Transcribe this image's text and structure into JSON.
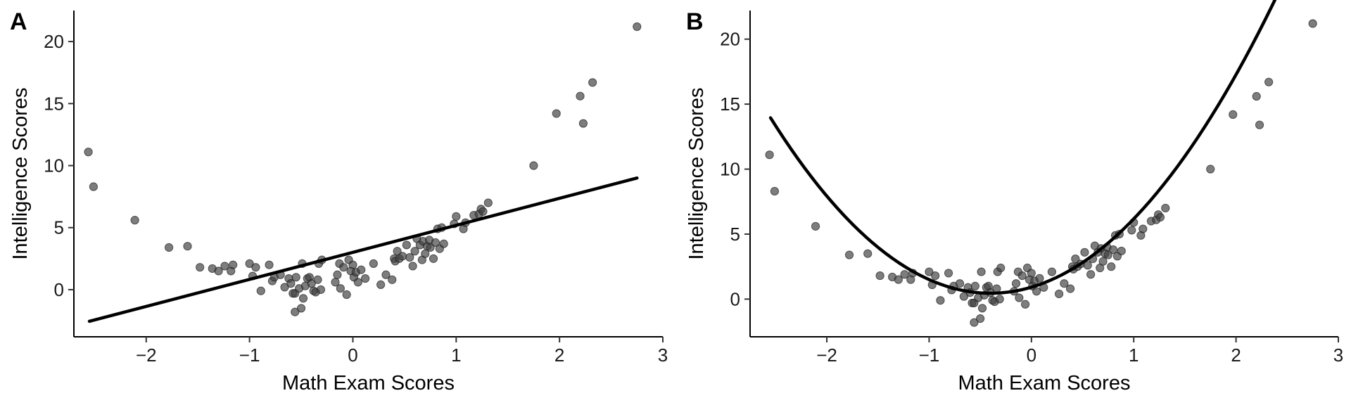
{
  "chart_data": [
    {
      "panel_label": "A",
      "type": "scatter",
      "fit": "linear",
      "xlabel": "Math Exam Scores",
      "ylabel": "Intelligence Scores",
      "xlim": [
        -2.7,
        3.0
      ],
      "ylim": [
        -3.8,
        22.5
      ],
      "xticks": [
        -2,
        -1,
        0,
        1,
        2,
        3
      ],
      "yticks": [
        0,
        5,
        10,
        15,
        20
      ],
      "point_color": "#3f3f3f",
      "line_color": "#000000",
      "points": [
        [
          -2.56,
          11.1
        ],
        [
          -2.51,
          8.3
        ],
        [
          -2.11,
          5.6
        ],
        [
          -1.78,
          3.4
        ],
        [
          -1.6,
          3.5
        ],
        [
          -1.48,
          1.8
        ],
        [
          -1.36,
          1.7
        ],
        [
          -1.3,
          1.5
        ],
        [
          -1.24,
          1.9
        ],
        [
          -1.18,
          1.5
        ],
        [
          -1.16,
          2.0
        ],
        [
          -1.0,
          2.1
        ],
        [
          -0.97,
          1.1
        ],
        [
          -0.94,
          1.8
        ],
        [
          -0.89,
          -0.1
        ],
        [
          -0.81,
          2.0
        ],
        [
          -0.78,
          0.7
        ],
        [
          -0.76,
          1.0
        ],
        [
          -0.7,
          1.2
        ],
        [
          -0.66,
          0.2
        ],
        [
          -0.62,
          0.9
        ],
        [
          -0.6,
          0.5
        ],
        [
          -0.58,
          -0.3
        ],
        [
          -0.56,
          -0.3
        ],
        [
          -0.56,
          -1.8
        ],
        [
          -0.55,
          1.0
        ],
        [
          -0.52,
          0.1
        ],
        [
          -0.5,
          -1.5
        ],
        [
          -0.49,
          2.1
        ],
        [
          -0.48,
          -0.7
        ],
        [
          -0.46,
          0.3
        ],
        [
          -0.44,
          0.9
        ],
        [
          -0.42,
          1.0
        ],
        [
          -0.4,
          0.5
        ],
        [
          -0.38,
          -0.1
        ],
        [
          -0.36,
          -0.2
        ],
        [
          -0.34,
          0.8
        ],
        [
          -0.33,
          2.1
        ],
        [
          -0.31,
          0.0
        ],
        [
          -0.3,
          2.4
        ],
        [
          -0.17,
          0.6
        ],
        [
          -0.15,
          1.2
        ],
        [
          -0.13,
          2.1
        ],
        [
          -0.12,
          0.1
        ],
        [
          -0.09,
          1.8
        ],
        [
          -0.06,
          -0.4
        ],
        [
          -0.04,
          2.4
        ],
        [
          -0.02,
          1.5
        ],
        [
          0.0,
          2.0
        ],
        [
          0.01,
          1.0
        ],
        [
          0.03,
          1.4
        ],
        [
          0.05,
          0.6
        ],
        [
          0.08,
          1.6
        ],
        [
          0.12,
          0.9
        ],
        [
          0.2,
          2.1
        ],
        [
          0.27,
          0.4
        ],
        [
          0.32,
          1.2
        ],
        [
          0.38,
          0.8
        ],
        [
          0.4,
          2.5
        ],
        [
          0.41,
          2.3
        ],
        [
          0.43,
          3.1
        ],
        [
          0.45,
          2.5
        ],
        [
          0.48,
          2.7
        ],
        [
          0.52,
          3.6
        ],
        [
          0.55,
          2.6
        ],
        [
          0.58,
          1.9
        ],
        [
          0.6,
          3.1
        ],
        [
          0.62,
          4.1
        ],
        [
          0.65,
          3.6
        ],
        [
          0.67,
          2.4
        ],
        [
          0.68,
          3.9
        ],
        [
          0.7,
          2.9
        ],
        [
          0.72,
          3.5
        ],
        [
          0.74,
          4.0
        ],
        [
          0.75,
          3.4
        ],
        [
          0.78,
          2.5
        ],
        [
          0.8,
          3.8
        ],
        [
          0.82,
          4.9
        ],
        [
          0.84,
          3.3
        ],
        [
          0.86,
          5.0
        ],
        [
          0.88,
          3.7
        ],
        [
          0.98,
          5.3
        ],
        [
          1.0,
          5.9
        ],
        [
          1.07,
          4.9
        ],
        [
          1.09,
          5.4
        ],
        [
          1.17,
          6.0
        ],
        [
          1.22,
          6.1
        ],
        [
          1.24,
          6.5
        ],
        [
          1.26,
          6.3
        ],
        [
          1.31,
          7.0
        ],
        [
          1.75,
          10.0
        ],
        [
          1.97,
          14.2
        ],
        [
          2.2,
          15.6
        ],
        [
          2.23,
          13.4
        ],
        [
          2.32,
          16.7
        ],
        [
          2.75,
          21.2
        ]
      ],
      "fit_curve": {
        "x": [
          -2.55,
          2.75
        ],
        "y": [
          -2.55,
          9.0
        ]
      }
    },
    {
      "panel_label": "B",
      "type": "scatter",
      "fit": "quadratic",
      "xlabel": "Math Exam Scores",
      "ylabel": "Intelligence Scores",
      "xlim": [
        -2.75,
        3.0
      ],
      "ylim": [
        -2.9,
        22.2
      ],
      "xticks": [
        -2,
        -1,
        0,
        1,
        2,
        3
      ],
      "yticks": [
        0,
        5,
        10,
        15,
        20
      ],
      "point_color": "#3f3f3f",
      "line_color": "#000000",
      "points": [
        [
          -2.56,
          11.1
        ],
        [
          -2.51,
          8.3
        ],
        [
          -2.11,
          5.6
        ],
        [
          -1.78,
          3.4
        ],
        [
          -1.6,
          3.5
        ],
        [
          -1.48,
          1.8
        ],
        [
          -1.36,
          1.7
        ],
        [
          -1.3,
          1.5
        ],
        [
          -1.24,
          1.9
        ],
        [
          -1.18,
          1.5
        ],
        [
          -1.16,
          2.0
        ],
        [
          -1.0,
          2.1
        ],
        [
          -0.97,
          1.1
        ],
        [
          -0.94,
          1.8
        ],
        [
          -0.89,
          -0.1
        ],
        [
          -0.81,
          2.0
        ],
        [
          -0.78,
          0.7
        ],
        [
          -0.76,
          1.0
        ],
        [
          -0.7,
          1.2
        ],
        [
          -0.66,
          0.2
        ],
        [
          -0.62,
          0.9
        ],
        [
          -0.6,
          0.5
        ],
        [
          -0.58,
          -0.3
        ],
        [
          -0.56,
          -0.3
        ],
        [
          -0.56,
          -1.8
        ],
        [
          -0.55,
          1.0
        ],
        [
          -0.52,
          0.1
        ],
        [
          -0.5,
          -1.5
        ],
        [
          -0.49,
          2.1
        ],
        [
          -0.48,
          -0.7
        ],
        [
          -0.46,
          0.3
        ],
        [
          -0.44,
          0.9
        ],
        [
          -0.42,
          1.0
        ],
        [
          -0.4,
          0.5
        ],
        [
          -0.38,
          -0.1
        ],
        [
          -0.36,
          -0.2
        ],
        [
          -0.34,
          0.8
        ],
        [
          -0.33,
          2.1
        ],
        [
          -0.31,
          0.0
        ],
        [
          -0.3,
          2.4
        ],
        [
          -0.17,
          0.6
        ],
        [
          -0.15,
          1.2
        ],
        [
          -0.13,
          2.1
        ],
        [
          -0.12,
          0.1
        ],
        [
          -0.09,
          1.8
        ],
        [
          -0.06,
          -0.4
        ],
        [
          -0.04,
          2.4
        ],
        [
          -0.02,
          1.5
        ],
        [
          0.0,
          2.0
        ],
        [
          0.01,
          1.0
        ],
        [
          0.03,
          1.4
        ],
        [
          0.05,
          0.6
        ],
        [
          0.08,
          1.6
        ],
        [
          0.12,
          0.9
        ],
        [
          0.2,
          2.1
        ],
        [
          0.27,
          0.4
        ],
        [
          0.32,
          1.2
        ],
        [
          0.38,
          0.8
        ],
        [
          0.4,
          2.5
        ],
        [
          0.41,
          2.3
        ],
        [
          0.43,
          3.1
        ],
        [
          0.45,
          2.5
        ],
        [
          0.48,
          2.7
        ],
        [
          0.52,
          3.6
        ],
        [
          0.55,
          2.6
        ],
        [
          0.58,
          1.9
        ],
        [
          0.6,
          3.1
        ],
        [
          0.62,
          4.1
        ],
        [
          0.65,
          3.6
        ],
        [
          0.67,
          2.4
        ],
        [
          0.68,
          3.9
        ],
        [
          0.7,
          2.9
        ],
        [
          0.72,
          3.5
        ],
        [
          0.74,
          4.0
        ],
        [
          0.75,
          3.4
        ],
        [
          0.78,
          2.5
        ],
        [
          0.8,
          3.8
        ],
        [
          0.82,
          4.9
        ],
        [
          0.84,
          3.3
        ],
        [
          0.86,
          5.0
        ],
        [
          0.88,
          3.7
        ],
        [
          0.98,
          5.3
        ],
        [
          1.0,
          5.9
        ],
        [
          1.07,
          4.9
        ],
        [
          1.09,
          5.4
        ],
        [
          1.17,
          6.0
        ],
        [
          1.22,
          6.1
        ],
        [
          1.24,
          6.5
        ],
        [
          1.26,
          6.3
        ],
        [
          1.31,
          7.0
        ],
        [
          1.75,
          10.0
        ],
        [
          1.97,
          14.2
        ],
        [
          2.2,
          15.6
        ],
        [
          2.23,
          13.4
        ],
        [
          2.32,
          16.7
        ],
        [
          2.75,
          21.2
        ]
      ],
      "fit_quadratic": {
        "vertex_x": -0.4,
        "vertex_y": 0.45,
        "a": 2.92,
        "x_range": [
          -2.55,
          2.75
        ]
      }
    }
  ]
}
